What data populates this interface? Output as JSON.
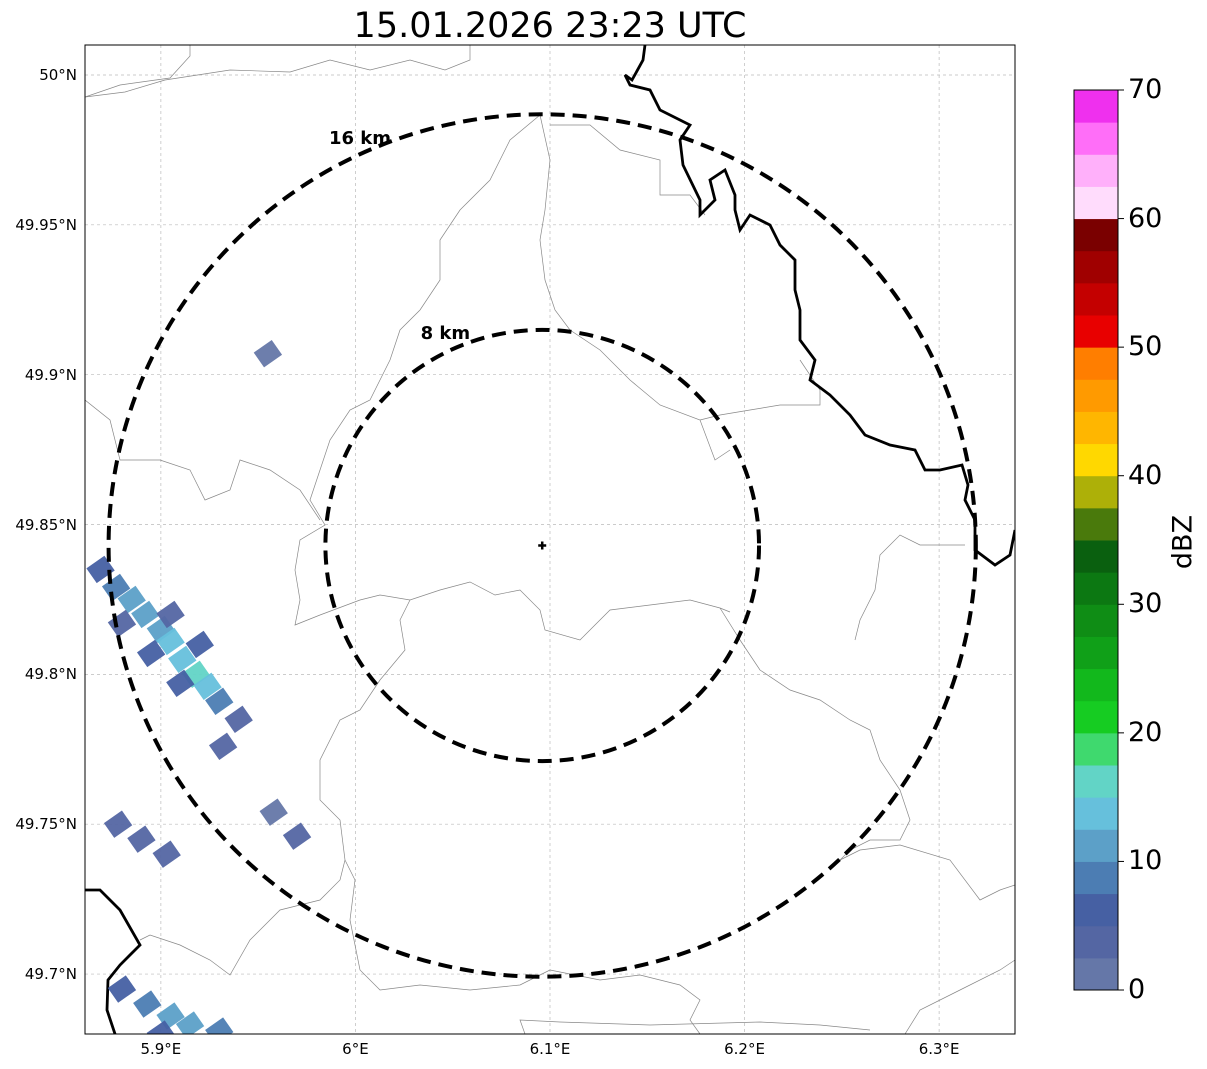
{
  "title": "15.01.2026 23:23 UTC",
  "map": {
    "lat_ticks": [
      {
        "label": "50°N",
        "lat": 50.0
      },
      {
        "label": "49.95°N",
        "lat": 49.95
      },
      {
        "label": "49.9°N",
        "lat": 49.9
      },
      {
        "label": "49.85°N",
        "lat": 49.85
      },
      {
        "label": "49.8°N",
        "lat": 49.8
      },
      {
        "label": "49.75°N",
        "lat": 49.75
      },
      {
        "label": "49.7°N",
        "lat": 49.7
      }
    ],
    "lon_ticks": [
      {
        "label": "5.9°E",
        "lon": 5.9
      },
      {
        "label": "6°E",
        "lon": 6.0
      },
      {
        "label": "6.1°E",
        "lon": 6.1
      },
      {
        "label": "6.2°E",
        "lon": 6.2
      },
      {
        "label": "6.3°E",
        "lon": 6.3
      }
    ],
    "extent": {
      "lon_min": 5.861,
      "lon_max": 6.339,
      "lat_min": 49.68,
      "lat_max": 50.01
    },
    "radar_site": {
      "lon": 6.096,
      "lat": 49.843
    },
    "range_rings": [
      {
        "label": "8 km",
        "radius_km": 8
      },
      {
        "label": "16 km",
        "radius_km": 16
      }
    ],
    "grid": "dashed-light-gray"
  },
  "colorbar": {
    "unit": "dBZ",
    "min": 0,
    "max": 70,
    "step": 2.5,
    "tick_labels": [
      "0",
      "10",
      "20",
      "30",
      "40",
      "50",
      "60",
      "70"
    ],
    "colors": [
      "#6577a8",
      "#5466a3",
      "#4660a3",
      "#4c7db3",
      "#5ca0c8",
      "#66c0dc",
      "#62d4c6",
      "#3fd96e",
      "#16cc22",
      "#12b81c",
      "#10a018",
      "#0f8d15",
      "#0c7812",
      "#0a600f",
      "#4a7a0c",
      "#adb008",
      "#ffd800",
      "#ffb600",
      "#ff9a00",
      "#ff7e00",
      "#e80000",
      "#c40000",
      "#a00000",
      "#7a0000",
      "#ffdcfc",
      "#ffb0fa",
      "#ff6ef8",
      "#ef30ee"
    ]
  },
  "echoes": [
    {
      "lon": 5.869,
      "lat": 49.835,
      "dbz": 5
    },
    {
      "lon": 5.877,
      "lat": 49.829,
      "dbz": 8
    },
    {
      "lon": 5.885,
      "lat": 49.825,
      "dbz": 10
    },
    {
      "lon": 5.892,
      "lat": 49.82,
      "dbz": 11
    },
    {
      "lon": 5.9,
      "lat": 49.815,
      "dbz": 12
    },
    {
      "lon": 5.905,
      "lat": 49.811,
      "dbz": 13
    },
    {
      "lon": 5.911,
      "lat": 49.805,
      "dbz": 14
    },
    {
      "lon": 5.918,
      "lat": 49.8,
      "dbz": 15
    },
    {
      "lon": 5.924,
      "lat": 49.796,
      "dbz": 13
    },
    {
      "lon": 5.93,
      "lat": 49.791,
      "dbz": 9
    },
    {
      "lon": 5.94,
      "lat": 49.785,
      "dbz": 4
    },
    {
      "lon": 5.88,
      "lat": 49.817,
      "dbz": 4
    },
    {
      "lon": 5.895,
      "lat": 49.807,
      "dbz": 6
    },
    {
      "lon": 5.91,
      "lat": 49.797,
      "dbz": 5
    },
    {
      "lon": 5.905,
      "lat": 49.82,
      "dbz": 3
    },
    {
      "lon": 5.92,
      "lat": 49.81,
      "dbz": 5
    },
    {
      "lon": 5.932,
      "lat": 49.776,
      "dbz": 3
    },
    {
      "lon": 5.955,
      "lat": 49.907,
      "dbz": 2
    },
    {
      "lon": 5.878,
      "lat": 49.75,
      "dbz": 3
    },
    {
      "lon": 5.89,
      "lat": 49.745,
      "dbz": 4
    },
    {
      "lon": 5.903,
      "lat": 49.74,
      "dbz": 3
    },
    {
      "lon": 5.958,
      "lat": 49.754,
      "dbz": 2
    },
    {
      "lon": 5.97,
      "lat": 49.746,
      "dbz": 4
    },
    {
      "lon": 5.88,
      "lat": 49.695,
      "dbz": 5
    },
    {
      "lon": 5.893,
      "lat": 49.69,
      "dbz": 8
    },
    {
      "lon": 5.905,
      "lat": 49.686,
      "dbz": 10
    },
    {
      "lon": 5.915,
      "lat": 49.683,
      "dbz": 12
    },
    {
      "lon": 5.93,
      "lat": 49.681,
      "dbz": 9
    },
    {
      "lon": 5.9,
      "lat": 49.68,
      "dbz": 5
    }
  ]
}
